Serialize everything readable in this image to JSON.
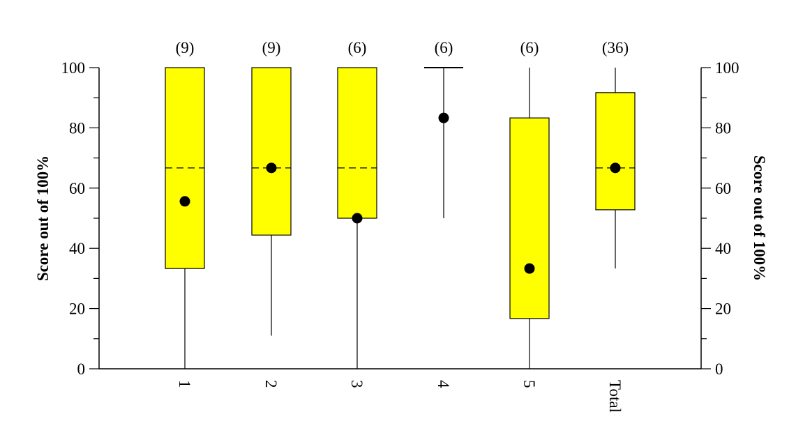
{
  "chart_data": {
    "type": "box",
    "categories": [
      "1",
      "2",
      "3",
      "4",
      "5",
      "Total"
    ],
    "counts": [
      "(9)",
      "(9)",
      "(6)",
      "(6)",
      "(6)",
      "(36)"
    ],
    "boxes": [
      {
        "whisker_low": 0,
        "q1": 33.3,
        "median": 66.7,
        "q3": 100,
        "whisker_high": 100,
        "mean": 55.6
      },
      {
        "whisker_low": 11,
        "q1": 44.4,
        "median": 66.7,
        "q3": 100,
        "whisker_high": 100,
        "mean": 66.7
      },
      {
        "whisker_low": 0,
        "q1": 50,
        "median": 66.7,
        "q3": 100,
        "whisker_high": 100,
        "mean": 50
      },
      {
        "whisker_low": 50,
        "q1": 100,
        "median": 100,
        "q3": 100,
        "whisker_high": 100,
        "mean": 83.3
      },
      {
        "whisker_low": 0,
        "q1": 16.7,
        "median": 16.7,
        "q3": 83.3,
        "whisker_high": 100,
        "mean": 33.3
      },
      {
        "whisker_low": 33.3,
        "q1": 52.8,
        "median": 66.7,
        "q3": 91.7,
        "whisker_high": 100,
        "mean": 66.7
      }
    ],
    "ylim": [
      0,
      100
    ],
    "yticks": [
      0,
      20,
      40,
      60,
      80,
      100
    ],
    "ylabel_left": "Score out of 100%",
    "ylabel_right": "Score out of 100%",
    "box_color": "#ffff00",
    "grid": false
  }
}
